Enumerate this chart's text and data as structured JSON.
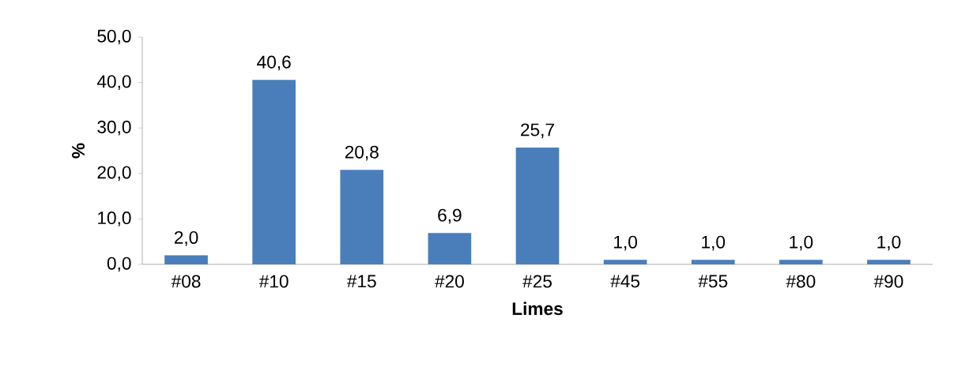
{
  "chart_data": {
    "type": "bar",
    "xlabel": "Limes",
    "ylabel": "%",
    "categories": [
      "#08",
      "#10",
      "#15",
      "#20",
      "#25",
      "#45",
      "#55",
      "#80",
      "#90"
    ],
    "values": [
      2.0,
      40.6,
      20.8,
      6.9,
      25.7,
      1.0,
      1.0,
      1.0,
      1.0
    ],
    "value_labels": [
      "2,0",
      "40,6",
      "20,8",
      "6,9",
      "25,7",
      "1,0",
      "1,0",
      "1,0",
      "1,0"
    ],
    "color": "#4a7ebb",
    "ylim": [
      0,
      50
    ],
    "yticks": [
      {
        "value": 0,
        "label": "0,0"
      },
      {
        "value": 10,
        "label": "10,0"
      },
      {
        "value": 20,
        "label": "20,0"
      },
      {
        "value": 30,
        "label": "30,0"
      },
      {
        "value": 40,
        "label": "40,0"
      },
      {
        "value": 50,
        "label": "50,0"
      }
    ],
    "grid": false
  }
}
